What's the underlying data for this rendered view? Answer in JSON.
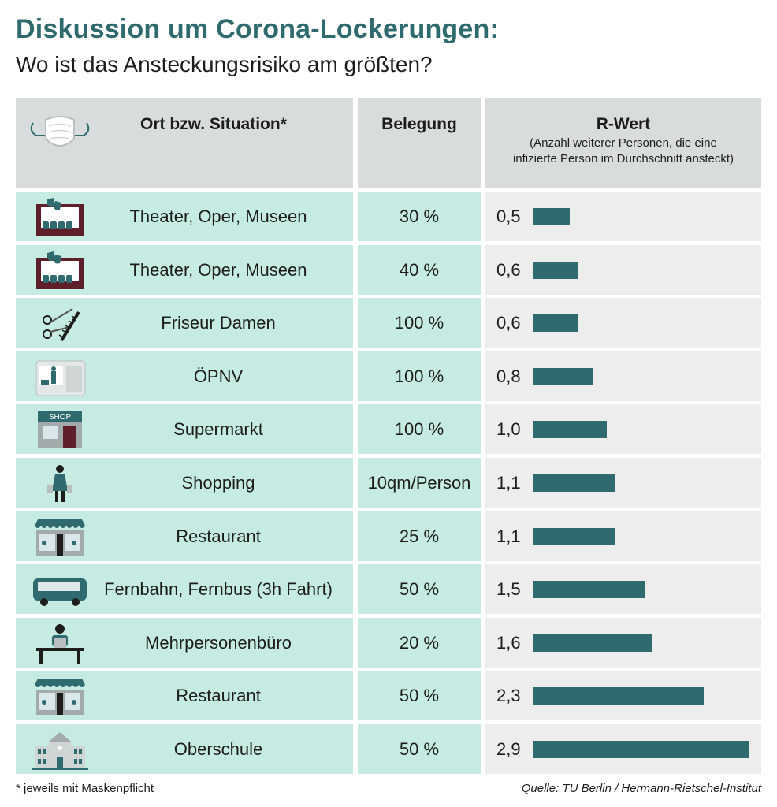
{
  "title": "Diskussion um Corona-Lockerungen:",
  "subtitle": "Wo ist das Ansteckungsrisiko am größten?",
  "header": {
    "col_place": "Ort bzw. Situation*",
    "col_occupancy": "Belegung",
    "col_r": "R-Wert",
    "col_r_note_1": "(Anzahl weiterer Personen, die eine",
    "col_r_note_2": "infizierte Person im Durchschnitt ansteckt)",
    "icon": "face-mask-icon"
  },
  "colors": {
    "accent": "#2f6b6e",
    "row_mint": "#c6ebe2",
    "row_grey": "#ededed",
    "header_grey": "#d9dcdd"
  },
  "chart_data": {
    "type": "bar",
    "orientation": "horizontal",
    "categories": [
      "Theater, Oper, Museen",
      "Theater, Oper, Museen",
      "Friseur Damen",
      "ÖPNV",
      "Supermarkt",
      "Shopping",
      "Restaurant",
      "Fernbahn, Fernbus (3h Fahrt)",
      "Mehrpersonenbüro",
      "Restaurant",
      "Oberschule"
    ],
    "occupancy": [
      "30 %",
      "40 %",
      "100 %",
      "100 %",
      "100 %",
      "10qm/Person",
      "25 %",
      "50 %",
      "20 %",
      "50 %",
      "50 %"
    ],
    "values": [
      0.5,
      0.6,
      0.6,
      0.8,
      1.0,
      1.1,
      1.1,
      1.5,
      1.6,
      2.3,
      2.9
    ],
    "value_labels": [
      "0,5",
      "0,6",
      "0,6",
      "0,8",
      "1,0",
      "1,1",
      "1,1",
      "1,5",
      "1,6",
      "2,3",
      "2,9"
    ],
    "icons": [
      "theater-icon",
      "theater-icon",
      "scissors-comb-icon",
      "tram-icon",
      "shop-icon",
      "shopper-icon",
      "restaurant-icon",
      "bus-icon",
      "office-worker-icon",
      "restaurant-icon",
      "school-building-icon"
    ],
    "xlim": [
      0,
      2.9
    ],
    "grid": false,
    "legend": "none"
  },
  "footnote": "* jeweils mit Maskenpflicht",
  "source": "Quelle: TU Berlin / Hermann-Rietschel-Institut"
}
